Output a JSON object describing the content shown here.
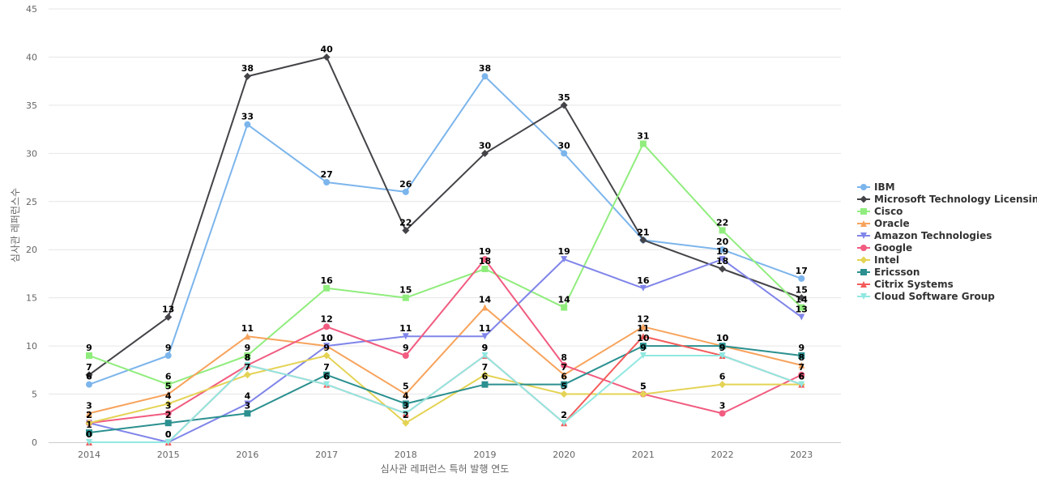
{
  "chart_data": {
    "type": "line",
    "xlabel": "심사관 레퍼런스 특허 발행 연도",
    "ylabel": "심사관 레퍼런스수",
    "ylim": [
      0,
      45
    ],
    "yticks": [
      0,
      5,
      10,
      15,
      20,
      25,
      30,
      35,
      40,
      45
    ],
    "grid": true,
    "legend_position": "right",
    "categories": [
      "2014",
      "2015",
      "2016",
      "2017",
      "2018",
      "2019",
      "2020",
      "2021",
      "2022",
      "2023"
    ],
    "series": [
      {
        "name": "IBM",
        "color": "#7cb5ec",
        "marker": "circle",
        "values": [
          6,
          9,
          33,
          27,
          26,
          38,
          30,
          21,
          20,
          17
        ]
      },
      {
        "name": "Microsoft Technology Licensing",
        "color": "#434348",
        "marker": "diamond",
        "values": [
          7,
          13,
          38,
          40,
          22,
          30,
          35,
          21,
          18,
          15
        ]
      },
      {
        "name": "Cisco",
        "color": "#90ed7d",
        "marker": "square",
        "values": [
          9,
          6,
          9,
          16,
          15,
          18,
          14,
          31,
          22,
          14
        ]
      },
      {
        "name": "Oracle",
        "color": "#f7a35c",
        "marker": "triangle",
        "values": [
          3,
          5,
          11,
          10,
          5,
          14,
          7,
          12,
          10,
          8
        ]
      },
      {
        "name": "Amazon Technologies",
        "color": "#8085e9",
        "marker": "triangle-down",
        "values": [
          2,
          0,
          4,
          10,
          11,
          11,
          19,
          16,
          19,
          13
        ]
      },
      {
        "name": "Google",
        "color": "#f15c80",
        "marker": "circle",
        "values": [
          2,
          3,
          8,
          12,
          9,
          19,
          8,
          5,
          3,
          7
        ]
      },
      {
        "name": "Intel",
        "color": "#e4d354",
        "marker": "diamond",
        "values": [
          2,
          4,
          7,
          9,
          2,
          7,
          5,
          5,
          6,
          6
        ]
      },
      {
        "name": "Ericsson",
        "color": "#2b908f",
        "marker": "square",
        "values": [
          1,
          2,
          3,
          7,
          4,
          6,
          6,
          10,
          10,
          9
        ]
      },
      {
        "name": "Citrix Systems",
        "color": "#f45b5b",
        "marker": "triangle",
        "values": [
          0,
          0,
          8,
          6,
          3,
          9,
          2,
          11,
          9,
          6
        ]
      },
      {
        "name": "Cloud Software Group",
        "color": "#91e8e1",
        "marker": "triangle-down",
        "values": [
          0,
          0,
          8,
          6,
          3,
          9,
          2,
          9,
          9,
          6
        ]
      }
    ]
  }
}
